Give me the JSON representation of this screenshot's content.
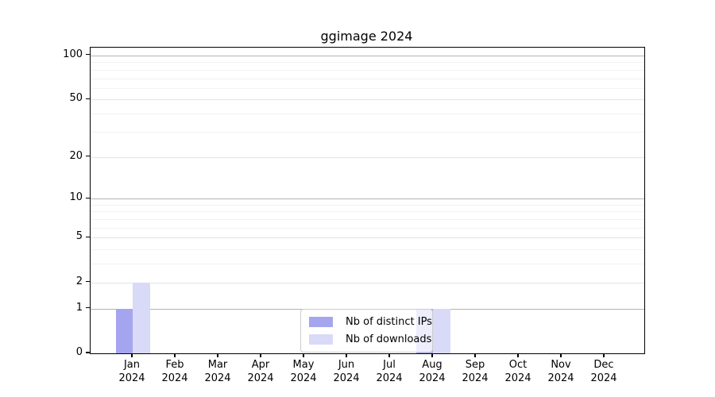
{
  "chart_data": {
    "type": "bar",
    "title": "ggimage 2024",
    "categories": [
      {
        "month": "Jan",
        "year": "2024"
      },
      {
        "month": "Feb",
        "year": "2024"
      },
      {
        "month": "Mar",
        "year": "2024"
      },
      {
        "month": "Apr",
        "year": "2024"
      },
      {
        "month": "May",
        "year": "2024"
      },
      {
        "month": "Jun",
        "year": "2024"
      },
      {
        "month": "Jul",
        "year": "2024"
      },
      {
        "month": "Aug",
        "year": "2024"
      },
      {
        "month": "Sep",
        "year": "2024"
      },
      {
        "month": "Oct",
        "year": "2024"
      },
      {
        "month": "Nov",
        "year": "2024"
      },
      {
        "month": "Dec",
        "year": "2024"
      }
    ],
    "series": [
      {
        "name": "Nb of distinct IPs",
        "color": "#a5a5ef",
        "values": [
          1,
          0,
          0,
          0,
          0,
          0,
          0,
          1,
          0,
          0,
          0,
          0
        ]
      },
      {
        "name": "Nb of downloads",
        "color": "#d9d9f8",
        "values": [
          2,
          0,
          0,
          0,
          0,
          0,
          0,
          1,
          0,
          0,
          0,
          0
        ]
      }
    ],
    "y_axis": {
      "scale": "log1p",
      "ticks": [
        0,
        1,
        2,
        5,
        10,
        20,
        50,
        100
      ],
      "decade_ticks": [
        1,
        10,
        100
      ],
      "minor_gridlines": [
        3,
        4,
        6,
        7,
        8,
        9,
        30,
        40,
        60,
        70,
        80,
        90
      ],
      "ylim": [
        0,
        113
      ]
    },
    "grid": true,
    "legend": {
      "position": "bottom-center-inside"
    },
    "colors": {
      "grid_decade": "#b3b3b3",
      "grid_major": "#e3e3e3",
      "grid_minor": "#f2f2f2",
      "axis": "#000000",
      "background": "#ffffff"
    }
  }
}
